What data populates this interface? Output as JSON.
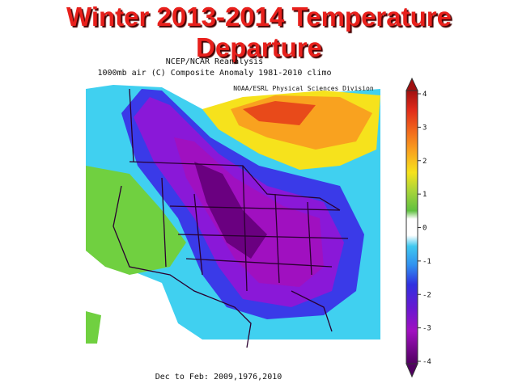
{
  "header": {
    "title": "Winter 2013-2014 Temperature Departure"
  },
  "map": {
    "source": "NCEP/NCAR Reanalysis",
    "subtitle": "1000mb air (C) Composite Anomaly 1981-2010 climo",
    "credit": "NOAA/ESRL Physical Sciences Division",
    "footer": "Dec to Feb: 2009,1976,2010"
  },
  "colorbar": {
    "range": [
      -4,
      4
    ],
    "ticks": [
      4,
      3,
      2,
      1,
      0,
      -1,
      -2,
      -3,
      -4
    ]
  }
}
